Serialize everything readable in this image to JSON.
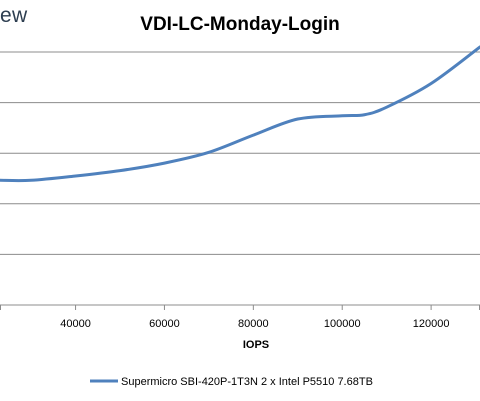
{
  "brand": {
    "text": "ew"
  },
  "chart_data": {
    "type": "line",
    "title": "VDI-LC-Monday-Login",
    "xlabel": "IOPS",
    "ylabel": "",
    "x_ticks": [
      40000,
      60000,
      80000,
      100000,
      120000
    ],
    "x_tick_labels": [
      "40000",
      "60000",
      "80000",
      "100000",
      "120000"
    ],
    "xlim": [
      23000,
      131000
    ],
    "grid": true,
    "legend_position": "bottom",
    "series": [
      {
        "name": "Supermicro SBI-420P-1T3N 2 x Intel P5510 7.68TB",
        "color": "#4f81bd",
        "x": [
          23000,
          30000,
          40000,
          50000,
          60000,
          70000,
          80000,
          90000,
          100000,
          105000,
          110000,
          120000,
          131000
        ],
        "y": [
          0.58,
          0.58,
          0.6,
          0.625,
          0.66,
          0.71,
          0.79,
          0.865,
          0.88,
          0.885,
          0.92,
          1.03,
          1.2
        ]
      }
    ]
  }
}
